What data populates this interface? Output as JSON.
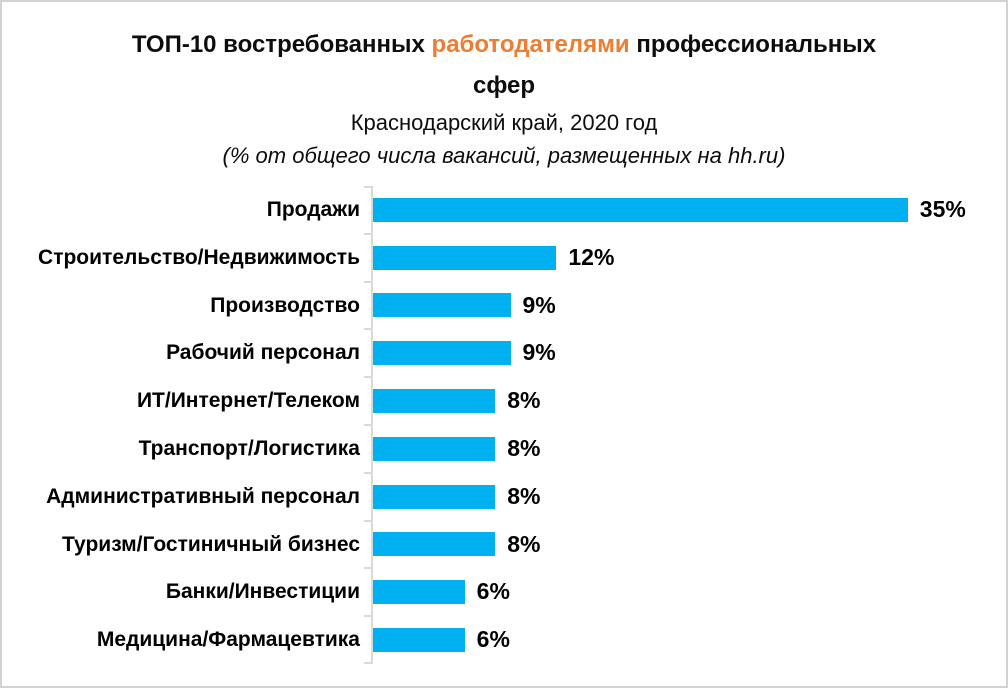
{
  "frame": {
    "background": "#ffffff",
    "border_color": "#d2d2d2"
  },
  "title": {
    "line1": {
      "prefix": "ТОП-10 востребованных ",
      "highlight": "работодателями",
      "suffix": " профессиональных"
    },
    "line2": "сфер",
    "highlight_color": "#ED7D31"
  },
  "subtitle": "Краснодарский край, 2020 год",
  "note": "(% от общего числа вакансий, размещенных на hh.ru)",
  "chart_data": {
    "type": "bar",
    "orientation": "horizontal",
    "title": "ТОП-10 востребованных работодателями профессиональных сфер",
    "subtitle": "Краснодарский край, 2020 год",
    "annotation": "(% от общего числа вакансий, размещенных на hh.ru)",
    "categories": [
      "Продажи",
      "Строительство/Недвижимость",
      "Производство",
      "Рабочий персонал",
      "ИТ/Интернет/Телеком",
      "Транспорт/Логистика",
      "Административный персонал",
      "Туризм/Гостиничный бизнес",
      "Банки/Инвестиции",
      "Медицина/Фармацевтика"
    ],
    "values": [
      35,
      12,
      9,
      9,
      8,
      8,
      8,
      8,
      6,
      6
    ],
    "labels": [
      "35%",
      "12%",
      "9%",
      "9%",
      "8%",
      "8%",
      "8%",
      "8%",
      "6%",
      "6%"
    ],
    "unit": "%",
    "xlim": [
      0,
      40
    ],
    "grid": false,
    "legend": false,
    "bar_color": "#00b0f0",
    "axis_color": "#d9d9d9",
    "data_label_position": "outside-end"
  }
}
